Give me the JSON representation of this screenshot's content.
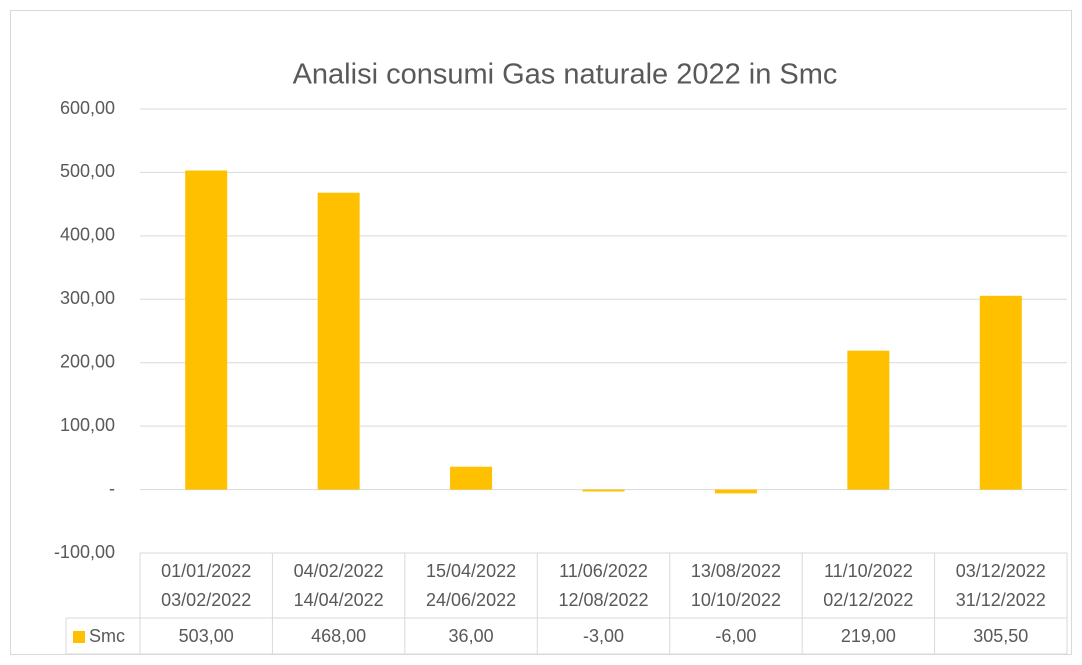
{
  "chart_data": {
    "type": "bar",
    "title": "Analisi consumi Gas naturale 2022 in Smc",
    "categories": [
      [
        "01/01/2022",
        "03/02/2022"
      ],
      [
        "04/02/2022",
        "14/04/2022"
      ],
      [
        "15/04/2022",
        "24/06/2022"
      ],
      [
        "11/06/2022",
        "12/08/2022"
      ],
      [
        "13/08/2022",
        "10/10/2022"
      ],
      [
        "11/10/2022",
        "02/12/2022"
      ],
      [
        "03/12/2022",
        "31/12/2022"
      ]
    ],
    "series": [
      {
        "name": "Smc",
        "color": "#ffc000",
        "values": [
          503,
          468,
          36,
          -3,
          -6,
          219,
          305.5
        ],
        "value_labels": [
          "503,00",
          "468,00",
          "36,00",
          "-3,00",
          "-6,00",
          "219,00",
          "305,50"
        ]
      }
    ],
    "ylim": [
      -100,
      600
    ],
    "yticks": [
      {
        "value": -100,
        "label": "-100,00"
      },
      {
        "value": 0,
        "label": "-"
      },
      {
        "value": 100,
        "label": "100,00"
      },
      {
        "value": 200,
        "label": "200,00"
      },
      {
        "value": 300,
        "label": "300,00"
      },
      {
        "value": 400,
        "label": "400,00"
      },
      {
        "value": 500,
        "label": "500,00"
      },
      {
        "value": 600,
        "label": "600,00"
      }
    ],
    "grid": true,
    "data_table": true
  }
}
